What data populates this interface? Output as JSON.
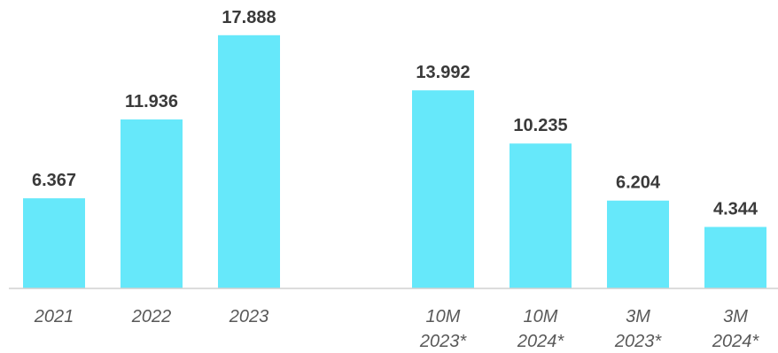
{
  "chart_data": {
    "type": "bar",
    "categories": [
      [
        "2021"
      ],
      [
        "2022"
      ],
      [
        "2023"
      ],
      [
        "10M",
        "2023*"
      ],
      [
        "10M",
        "2024*"
      ],
      [
        "3M",
        "2023*"
      ],
      [
        "3M",
        "2024*"
      ]
    ],
    "values": [
      6.367,
      11.936,
      17.888,
      13.992,
      10.235,
      6.204,
      4.344
    ],
    "value_labels": [
      "6.367",
      "11.936",
      "17.888",
      "13.992",
      "10.235",
      "6.204",
      "4.344"
    ],
    "bar_color": "#66e8fa",
    "ylim": [
      0,
      18.5
    ],
    "grid": false,
    "legend": "none",
    "title": "",
    "xlabel": "",
    "ylabel": ""
  }
}
